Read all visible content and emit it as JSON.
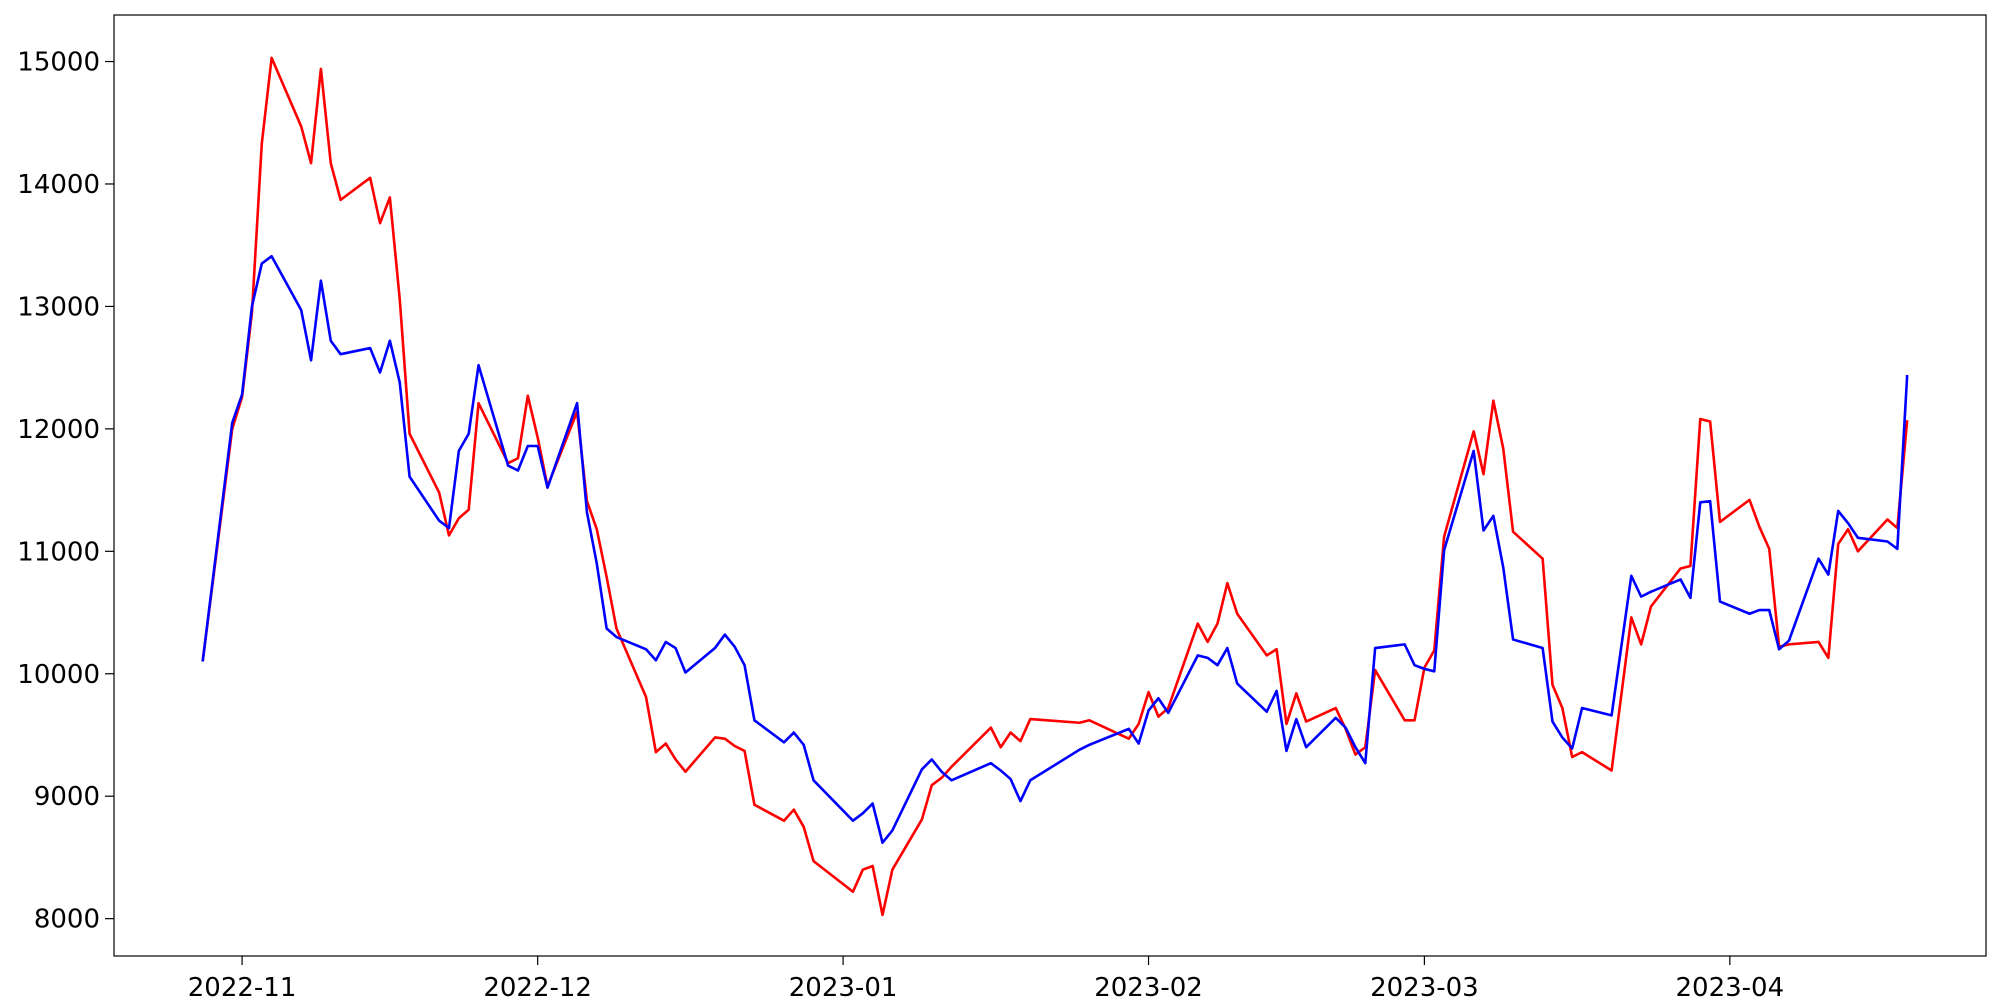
{
  "chart_data": {
    "type": "line",
    "x": [
      "2022-10-28",
      "2022-10-31",
      "2022-11-01",
      "2022-11-02",
      "2022-11-03",
      "2022-11-04",
      "2022-11-07",
      "2022-11-08",
      "2022-11-09",
      "2022-11-10",
      "2022-11-11",
      "2022-11-14",
      "2022-11-15",
      "2022-11-16",
      "2022-11-17",
      "2022-11-18",
      "2022-11-21",
      "2022-11-22",
      "2022-11-23",
      "2022-11-24",
      "2022-11-25",
      "2022-11-28",
      "2022-11-29",
      "2022-11-30",
      "2022-12-01",
      "2022-12-02",
      "2022-12-05",
      "2022-12-06",
      "2022-12-07",
      "2022-12-08",
      "2022-12-09",
      "2022-12-12",
      "2022-12-13",
      "2022-12-14",
      "2022-12-15",
      "2022-12-16",
      "2022-12-19",
      "2022-12-20",
      "2022-12-21",
      "2022-12-22",
      "2022-12-23",
      "2022-12-26",
      "2022-12-27",
      "2022-12-28",
      "2022-12-29",
      "2023-01-02",
      "2023-01-03",
      "2023-01-04",
      "2023-01-05",
      "2023-01-06",
      "2023-01-09",
      "2023-01-10",
      "2023-01-11",
      "2023-01-12",
      "2023-01-16",
      "2023-01-17",
      "2023-01-18",
      "2023-01-19",
      "2023-01-20",
      "2023-01-25",
      "2023-01-26",
      "2023-01-30",
      "2023-01-31",
      "2023-02-01",
      "2023-02-02",
      "2023-02-03",
      "2023-02-06",
      "2023-02-07",
      "2023-02-08",
      "2023-02-09",
      "2023-02-10",
      "2023-02-13",
      "2023-02-14",
      "2023-02-15",
      "2023-02-16",
      "2023-02-17",
      "2023-02-20",
      "2023-02-21",
      "2023-02-22",
      "2023-02-23",
      "2023-02-24",
      "2023-02-27",
      "2023-02-28",
      "2023-03-01",
      "2023-03-02",
      "2023-03-03",
      "2023-03-06",
      "2023-03-07",
      "2023-03-08",
      "2023-03-09",
      "2023-03-10",
      "2023-03-13",
      "2023-03-14",
      "2023-03-15",
      "2023-03-16",
      "2023-03-17",
      "2023-03-20",
      "2023-03-22",
      "2023-03-23",
      "2023-03-24",
      "2023-03-27",
      "2023-03-28",
      "2023-03-29",
      "2023-03-30",
      "2023-03-31",
      "2023-04-03",
      "2023-04-04",
      "2023-04-05",
      "2023-04-06",
      "2023-04-07",
      "2023-04-10",
      "2023-04-11",
      "2023-04-12",
      "2023-04-13",
      "2023-04-14",
      "2023-04-17",
      "2023-04-18",
      "2023-04-19"
    ],
    "series": [
      {
        "color": "#ff0000",
        "values": [
          10100,
          12000,
          12260,
          12950,
          14330,
          15030,
          14470,
          14170,
          14940,
          14170,
          13870,
          14050,
          13680,
          13890,
          13060,
          11960,
          11480,
          11130,
          11270,
          11340,
          12210,
          11720,
          11760,
          12270,
          11930,
          11530,
          12140,
          11410,
          11180,
          10790,
          10370,
          9810,
          9360,
          9430,
          9300,
          9200,
          9480,
          9470,
          9410,
          9370,
          8930,
          8800,
          8890,
          8750,
          8470,
          8220,
          8400,
          8430,
          8030,
          8400,
          8810,
          9090,
          9150,
          9240,
          9560,
          9400,
          9520,
          9450,
          9630,
          9600,
          9620,
          9470,
          9590,
          9850,
          9650,
          9720,
          10410,
          10260,
          10410,
          10740,
          10490,
          10150,
          10200,
          9590,
          9840,
          9610,
          9720,
          9550,
          9340,
          9400,
          10030,
          9620,
          9620,
          10050,
          10190,
          11120,
          11980,
          11630,
          12230,
          11840,
          11160,
          10940,
          9910,
          9720,
          9320,
          9360,
          9210,
          10460,
          10240,
          10550,
          10860,
          10880,
          12080,
          12060,
          11240,
          11420,
          11200,
          11020,
          10220,
          10240,
          10260,
          10130,
          11060,
          11180,
          11000,
          11260,
          11190,
          12070
        ]
      },
      {
        "color": "#0000ff",
        "values": [
          10100,
          12050,
          12280,
          13000,
          13350,
          13410,
          12970,
          12560,
          13210,
          12720,
          12610,
          12660,
          12460,
          12720,
          12380,
          11610,
          11250,
          11190,
          11820,
          11960,
          12520,
          11700,
          11660,
          11860,
          11860,
          11520,
          12210,
          11320,
          10900,
          10370,
          10300,
          10200,
          10110,
          10260,
          10210,
          10010,
          10210,
          10320,
          10220,
          10070,
          9620,
          9440,
          9520,
          9420,
          9130,
          8800,
          8860,
          8940,
          8620,
          8720,
          9220,
          9300,
          9200,
          9130,
          9270,
          9210,
          9140,
          8960,
          9130,
          9380,
          9420,
          9550,
          9430,
          9700,
          9800,
          9680,
          10150,
          10130,
          10070,
          10210,
          9920,
          9690,
          9860,
          9370,
          9630,
          9400,
          9640,
          9560,
          9400,
          9270,
          10210,
          10240,
          10070,
          10040,
          10020,
          11010,
          11820,
          11170,
          11290,
          10870,
          10280,
          10210,
          9610,
          9480,
          9390,
          9720,
          9660,
          10800,
          10630,
          10670,
          10770,
          10620,
          11400,
          11410,
          10590,
          10490,
          10520,
          10520,
          10200,
          10270,
          10940,
          10810,
          11330,
          11230,
          11110,
          11080,
          11020,
          12440
        ]
      }
    ],
    "xlim": [
      "2022-10-19",
      "2023-04-27"
    ],
    "xticks": [
      {
        "value": "2022-11-01",
        "label": "2022-11"
      },
      {
        "value": "2022-12-01",
        "label": "2022-12"
      },
      {
        "value": "2023-01-01",
        "label": "2023-01"
      },
      {
        "value": "2023-02-01",
        "label": "2023-02"
      },
      {
        "value": "2023-03-01",
        "label": "2023-03"
      },
      {
        "value": "2023-04-01",
        "label": "2023-04"
      }
    ],
    "ylim": [
      7695,
      15380
    ],
    "yticks": [
      8000,
      9000,
      10000,
      11000,
      12000,
      13000,
      14000,
      15000
    ],
    "grid": false
  }
}
